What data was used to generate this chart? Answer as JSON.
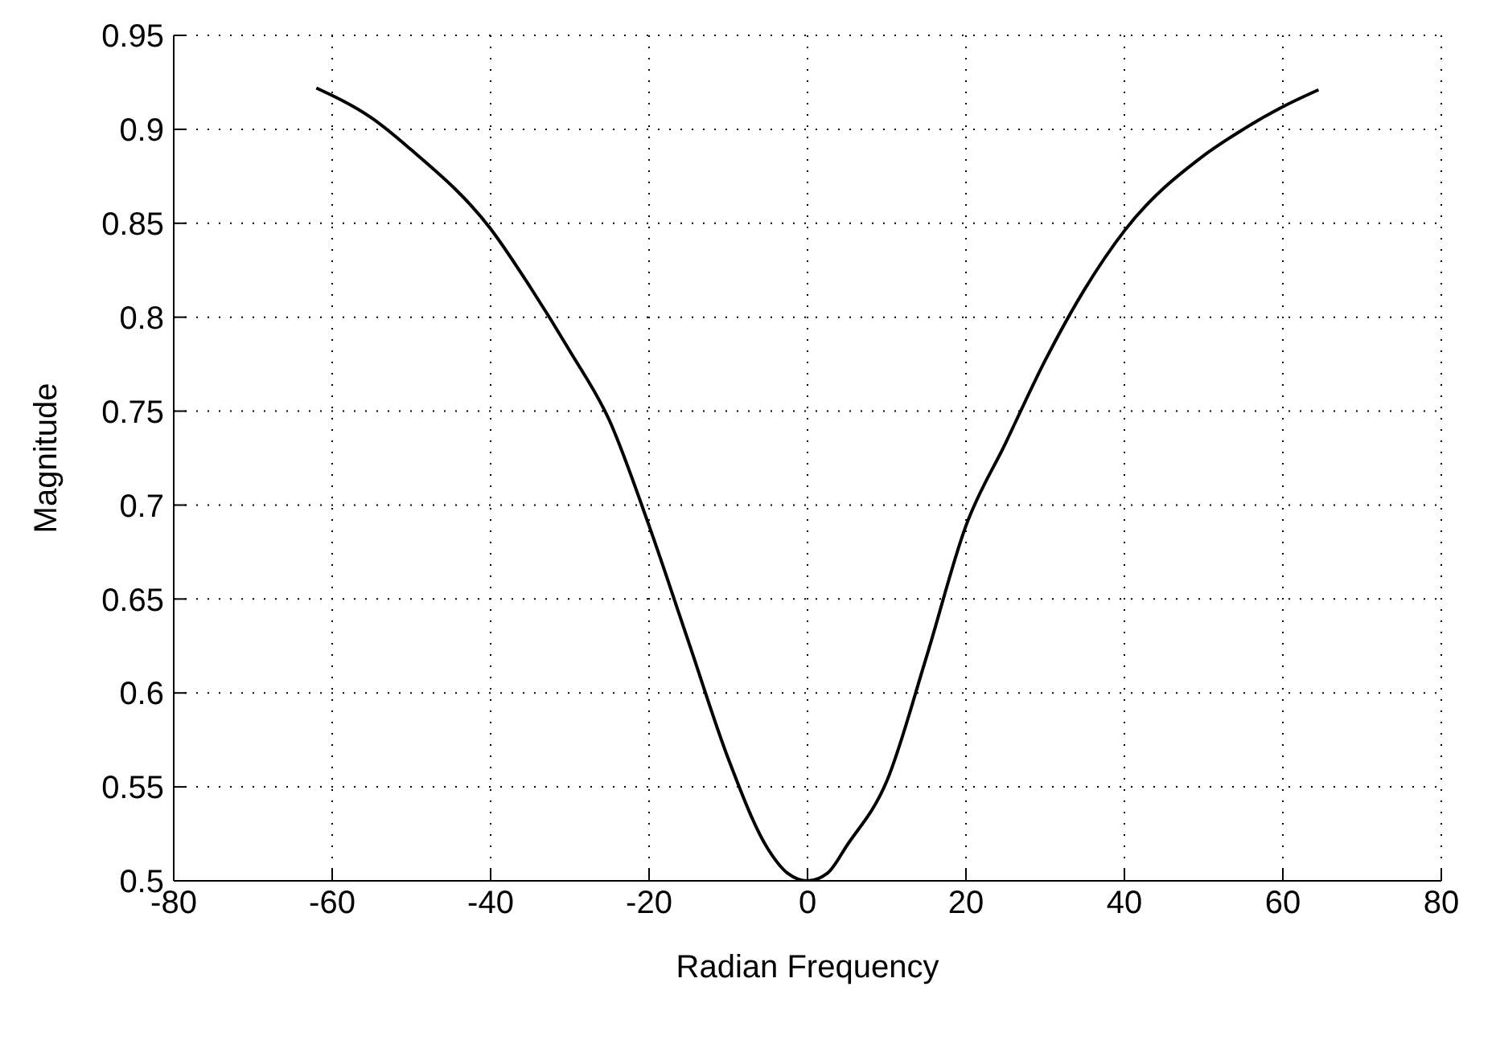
{
  "chart_data": {
    "type": "line",
    "xlabel": "Radian Frequency",
    "ylabel": "Magnitude",
    "x": [
      -62,
      -55,
      -50,
      -40,
      -35,
      -30,
      -25,
      -20,
      -15,
      -10,
      -5,
      -2.5,
      0,
      2.5,
      5,
      10,
      15,
      20,
      25,
      30,
      35,
      40,
      50,
      55,
      60,
      64.5
    ],
    "series": [
      {
        "color": "#000000",
        "values": [
          0.922,
          0.906,
          0.889,
          0.847,
          0.816,
          0.782,
          0.745,
          0.689,
          0.627,
          0.565,
          0.517,
          0.504,
          0.5,
          0.504,
          0.519,
          0.553,
          0.619,
          0.689,
          0.733,
          0.777,
          0.815,
          0.846,
          0.886,
          0.9,
          0.912,
          0.921
        ]
      }
    ],
    "xlim": [
      -80,
      80
    ],
    "xticks": [
      -80,
      -60,
      -40,
      -20,
      0,
      20,
      40,
      60,
      80
    ],
    "ylim": [
      0.5,
      0.95
    ],
    "yticks": [
      0.5,
      0.55,
      0.6,
      0.65,
      0.7,
      0.75,
      0.8,
      0.85,
      0.9,
      0.95
    ],
    "grid": true,
    "marker": "none",
    "line_style": "solid"
  }
}
